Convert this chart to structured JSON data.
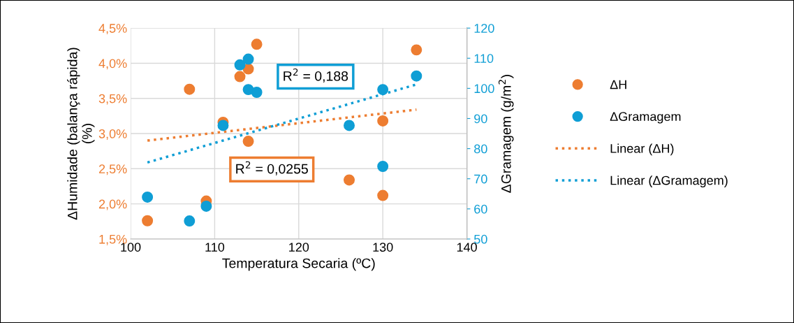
{
  "chart_data": {
    "type": "scatter",
    "xlabel": "Temperatura Secaria (ºC)",
    "ylabel": "ΔHumidade (balança rápida)\n(%)",
    "y2label": "ΔGramagem (g/m$^{2}$)",
    "xlim": [
      100,
      140
    ],
    "xticks": [
      100,
      110,
      120,
      130,
      140
    ],
    "ylim": [
      1.5,
      4.5
    ],
    "yticks": [
      {
        "value": 1.5,
        "label": "1,5%"
      },
      {
        "value": 2.0,
        "label": "2,0%"
      },
      {
        "value": 2.5,
        "label": "2,5%"
      },
      {
        "value": 3.0,
        "label": "3,0%"
      },
      {
        "value": 3.5,
        "label": "3,5%"
      },
      {
        "value": 4.0,
        "label": "4,0%"
      },
      {
        "value": 4.5,
        "label": "4,5%"
      }
    ],
    "y2lim": [
      50,
      120
    ],
    "y2ticks": [
      50,
      60,
      70,
      80,
      90,
      100,
      110,
      120
    ],
    "grid": true,
    "legend": "right",
    "marker": "circle",
    "x": [
      102,
      107,
      109,
      111,
      113,
      114,
      114,
      115,
      126,
      130,
      130,
      134
    ],
    "series": [
      {
        "name": "ΔH",
        "color": "#ed7d31",
        "values": [
          1.76,
          3.63,
          2.04,
          3.16,
          3.81,
          3.92,
          2.89,
          4.27,
          2.34,
          3.18,
          2.12,
          4.19
        ]
      },
      {
        "name": "ΔGramagem",
        "color": "#0f9ed5",
        "axis": "y2",
        "x": [
          102,
          107,
          109,
          111,
          113,
          114,
          114,
          115,
          126,
          130,
          130,
          134
        ],
        "values": [
          63.9,
          56.0,
          60.9,
          87.7,
          107.8,
          109.7,
          99.6,
          98.7,
          87.7,
          99.6,
          74.1,
          104.1
        ]
      },
      {
        "name": "Linear (ΔH)",
        "type": "line",
        "line_style": "dotted",
        "marker": "none",
        "color": "#ed7d31",
        "x": [
          102,
          134
        ],
        "values": [
          2.9,
          3.34
        ]
      },
      {
        "name": "Linear (ΔGramagem)",
        "type": "line",
        "line_style": "dotted",
        "marker": "none",
        "color": "#0f9ed5",
        "axis": "y2",
        "x": [
          102,
          134
        ],
        "values": [
          75.4,
          101.3
        ]
      }
    ],
    "annotations": [
      "R$^{2}$ = 0,188",
      "R$^{2}$ = 0,0255"
    ]
  }
}
